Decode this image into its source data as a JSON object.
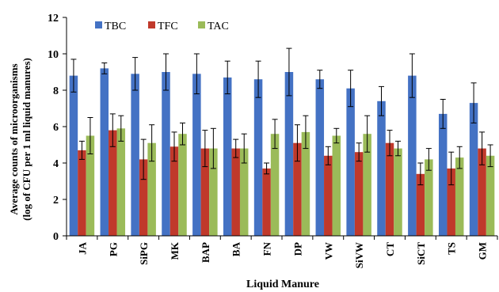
{
  "chart_data": {
    "type": "bar",
    "title": "",
    "xlabel": "Liquid Manure",
    "ylabel_line1": "Average counts of microorganisms",
    "ylabel_line2": "(log of CFU per 1 ml liquid manures)",
    "ylim": [
      0,
      12
    ],
    "yticks": [
      0,
      2,
      4,
      6,
      8,
      10,
      12
    ],
    "grid": false,
    "legend_position": "top-left",
    "error_bars": true,
    "categories": [
      "JA",
      "PG",
      "SiPG",
      "MK",
      "BAP",
      "BA",
      "FN",
      "DP",
      "VW",
      "SiVW",
      "CT",
      "SiCT",
      "TS",
      "GM"
    ],
    "series": [
      {
        "name": "TBC",
        "color": "#4472C4",
        "values": [
          8.8,
          9.2,
          8.9,
          9.0,
          8.9,
          8.7,
          8.6,
          9.0,
          8.6,
          8.1,
          7.4,
          8.8,
          6.7,
          7.3
        ],
        "errors": [
          0.9,
          0.3,
          0.9,
          1.0,
          1.1,
          0.9,
          1.0,
          1.3,
          0.5,
          1.0,
          0.8,
          1.2,
          0.8,
          1.1
        ]
      },
      {
        "name": "TFC",
        "color": "#C0392B",
        "values": [
          4.7,
          5.8,
          4.2,
          4.9,
          4.8,
          4.8,
          3.7,
          5.1,
          4.4,
          4.6,
          5.1,
          3.4,
          3.7,
          4.8
        ],
        "errors": [
          0.5,
          0.9,
          1.1,
          0.8,
          1.0,
          0.5,
          0.3,
          1.0,
          0.5,
          0.5,
          0.7,
          0.6,
          0.9,
          0.9
        ]
      },
      {
        "name": "TAC",
        "color": "#9BBB59",
        "values": [
          5.5,
          5.9,
          5.1,
          5.6,
          4.8,
          4.8,
          5.6,
          5.7,
          5.5,
          5.6,
          4.8,
          4.2,
          4.3,
          4.4
        ],
        "errors": [
          1.0,
          0.7,
          1.0,
          0.6,
          1.1,
          0.8,
          0.8,
          0.9,
          0.4,
          1.0,
          0.4,
          0.6,
          0.6,
          0.6
        ]
      }
    ]
  }
}
